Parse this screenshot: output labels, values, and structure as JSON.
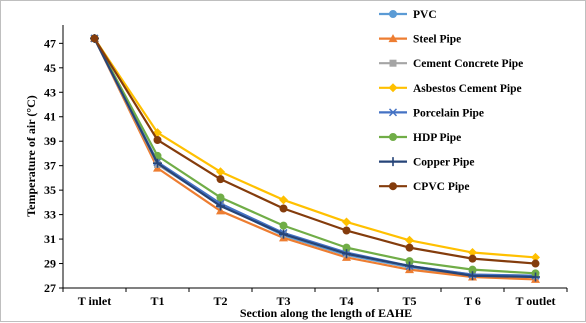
{
  "chart_data": {
    "type": "line",
    "title": "",
    "xlabel": "Section along the length of EAHE",
    "ylabel": "Temperature of air (°C)",
    "categories": [
      "T inlet",
      "T1",
      "T2",
      "T3",
      "T4",
      "T5",
      "T 6",
      "T outlet"
    ],
    "ylim": [
      27,
      48.5
    ],
    "yticks": [
      "27",
      "29",
      "31",
      "33",
      "35",
      "37",
      "39",
      "41",
      "43",
      "45",
      "47"
    ],
    "grid": false,
    "legend_position": "right",
    "series": [
      {
        "name": "PVC",
        "color": "#5b9bd5",
        "marker": "circle",
        "values": [
          47.4,
          37.1,
          33.8,
          31.3,
          29.7,
          28.7,
          28.0,
          27.9
        ]
      },
      {
        "name": "Steel Pipe",
        "color": "#ed7d31",
        "marker": "triangle",
        "values": [
          47.4,
          36.8,
          33.3,
          31.1,
          29.5,
          28.5,
          27.9,
          27.7
        ]
      },
      {
        "name": "Cement Concrete Pipe",
        "color": "#a5a5a5",
        "marker": "square",
        "values": [
          47.4,
          37.1,
          33.9,
          31.4,
          29.8,
          28.8,
          28.1,
          28.0
        ]
      },
      {
        "name": "Asbestos Cement Pipe",
        "color": "#ffc000",
        "marker": "diamond",
        "values": [
          47.4,
          39.7,
          36.5,
          34.2,
          32.4,
          30.9,
          29.9,
          29.5
        ]
      },
      {
        "name": "Porcelain Pipe",
        "color": "#4472c4",
        "marker": "x",
        "values": [
          47.4,
          37.3,
          33.9,
          31.5,
          29.9,
          28.8,
          28.1,
          28.0
        ]
      },
      {
        "name": "HDP Pipe",
        "color": "#70ad47",
        "marker": "circle",
        "values": [
          47.4,
          37.8,
          34.4,
          32.1,
          30.3,
          29.2,
          28.5,
          28.2
        ]
      },
      {
        "name": "Copper Pipe",
        "color": "#264478",
        "marker": "plus",
        "values": [
          47.4,
          37.2,
          33.7,
          31.4,
          29.8,
          28.8,
          28.0,
          27.9
        ]
      },
      {
        "name": "CPVC Pipe",
        "color": "#843c0c",
        "marker": "circle",
        "values": [
          47.4,
          39.1,
          35.9,
          33.5,
          31.7,
          30.3,
          29.4,
          29.0
        ]
      }
    ]
  }
}
